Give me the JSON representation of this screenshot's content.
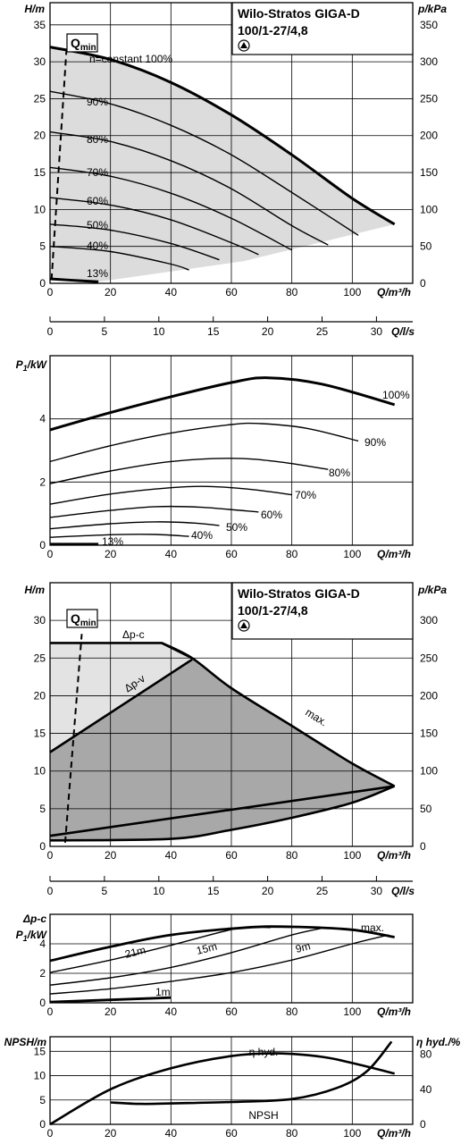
{
  "product": {
    "name": "Wilo-Stratos GIGA-D",
    "model": "100/1-27/4,8"
  },
  "chart_data": [
    {
      "id": "hq_speed",
      "type": "line",
      "title": "Wilo-Stratos GIGA-D 100/1-27/4,8",
      "xlabel": "Q/m³/h",
      "ylabel": "H/m",
      "y2label": "p/kPa",
      "xlim": [
        0,
        120
      ],
      "ylim": [
        0,
        38
      ],
      "y2lim": [
        0,
        380
      ],
      "xticks": [
        0,
        20,
        40,
        60,
        80,
        100
      ],
      "yticks": [
        0,
        5,
        10,
        15,
        20,
        25,
        30,
        35
      ],
      "y2ticks": [
        0,
        50,
        100,
        150,
        200,
        250,
        300,
        350
      ],
      "grid": true,
      "qmin_label": "Q",
      "qmin_sub": "min",
      "qmin_line": [
        [
          0.5,
          0.5
        ],
        [
          5.5,
          32
        ]
      ],
      "shaded_region": true,
      "series": [
        {
          "name": "n=constant 100%",
          "label": "n=constant 100%",
          "thick": true,
          "x": [
            0,
            20,
            40,
            60,
            80,
            100,
            114
          ],
          "y": [
            32,
            30.3,
            27.2,
            22.8,
            17.4,
            11.5,
            8
          ]
        },
        {
          "name": "90%",
          "label": "90%",
          "x": [
            0,
            20,
            40,
            60,
            80,
            102
          ],
          "y": [
            26,
            24.3,
            21.4,
            17.4,
            12.3,
            6.5
          ]
        },
        {
          "name": "80%",
          "label": "80%",
          "x": [
            0,
            20,
            40,
            60,
            80,
            92
          ],
          "y": [
            20.5,
            19.2,
            16.6,
            12.8,
            7.8,
            5.2
          ]
        },
        {
          "name": "70%",
          "label": "70%",
          "x": [
            0,
            20,
            40,
            60,
            80
          ],
          "y": [
            15.7,
            14.5,
            12.2,
            8.8,
            4.5
          ]
        },
        {
          "name": "60%",
          "label": "60%",
          "x": [
            0,
            20,
            40,
            60,
            69
          ],
          "y": [
            11.6,
            10.6,
            8.6,
            5.5,
            3.9
          ]
        },
        {
          "name": "50%",
          "label": "50%",
          "x": [
            0,
            20,
            40,
            56
          ],
          "y": [
            8,
            7.2,
            5.4,
            3.2
          ]
        },
        {
          "name": "40%",
          "label": "40%",
          "x": [
            0,
            20,
            40,
            46
          ],
          "y": [
            5,
            4.3,
            2.6,
            1.8
          ]
        },
        {
          "name": "13%",
          "label": "13%",
          "thick": true,
          "x": [
            0,
            10,
            16
          ],
          "y": [
            0.6,
            0.35,
            0.2
          ]
        }
      ]
    },
    {
      "id": "q_ls_axis",
      "type": "axis",
      "xlabel": "Q/l/s",
      "xticks": [
        0,
        5,
        10,
        15,
        20,
        25,
        30
      ],
      "xlim": [
        0,
        33.333
      ]
    },
    {
      "id": "p1_speed",
      "type": "line",
      "xlabel": "Q/m³/h",
      "ylabel": "P",
      "ylabel_sub": "1",
      "ylabel_unit": "/kW",
      "xlim": [
        0,
        120
      ],
      "ylim": [
        0,
        6
      ],
      "xticks": [
        0,
        20,
        40,
        60,
        80,
        100
      ],
      "yticks": [
        0,
        2,
        4
      ],
      "grid": true,
      "series": [
        {
          "name": "100%",
          "label": "100%",
          "thick": true,
          "x": [
            0,
            20,
            40,
            60,
            72,
            90,
            114
          ],
          "y": [
            3.65,
            4.2,
            4.7,
            5.15,
            5.3,
            5.1,
            4.45
          ]
        },
        {
          "name": "90%",
          "label": "90%",
          "x": [
            0,
            20,
            40,
            60,
            70,
            85,
            102
          ],
          "y": [
            2.65,
            3.15,
            3.55,
            3.82,
            3.85,
            3.7,
            3.3
          ]
        },
        {
          "name": "80%",
          "label": "80%",
          "x": [
            0,
            20,
            40,
            60,
            75,
            92
          ],
          "y": [
            1.95,
            2.35,
            2.65,
            2.75,
            2.65,
            2.4
          ]
        },
        {
          "name": "70%",
          "label": "70%",
          "x": [
            0,
            20,
            40,
            52,
            65,
            80
          ],
          "y": [
            1.3,
            1.62,
            1.82,
            1.86,
            1.78,
            1.6
          ]
        },
        {
          "name": "60%",
          "label": "60%",
          "x": [
            0,
            20,
            35,
            50,
            69
          ],
          "y": [
            0.88,
            1.1,
            1.22,
            1.2,
            1.05
          ]
        },
        {
          "name": "50%",
          "label": "50%",
          "x": [
            0,
            20,
            35,
            48,
            56
          ],
          "y": [
            0.52,
            0.68,
            0.74,
            0.7,
            0.62
          ]
        },
        {
          "name": "40%",
          "label": "40%",
          "x": [
            0,
            20,
            35,
            46
          ],
          "y": [
            0.25,
            0.33,
            0.34,
            0.28
          ]
        },
        {
          "name": "13%",
          "label": "13%",
          "thick": true,
          "x": [
            0,
            16
          ],
          "y": [
            0.03,
            0.03
          ]
        }
      ]
    },
    {
      "id": "hq_control",
      "type": "area",
      "title": "Wilo-Stratos GIGA-D 100/1-27/4,8",
      "xlabel": "Q/m³/h",
      "ylabel": "H/m",
      "y2label": "p/kPa",
      "xlim": [
        0,
        120
      ],
      "ylim": [
        0,
        35
      ],
      "y2lim": [
        0,
        350
      ],
      "xticks": [
        0,
        20,
        40,
        60,
        80,
        100
      ],
      "yticks": [
        0,
        5,
        10,
        15,
        20,
        25,
        30
      ],
      "y2ticks": [
        0,
        50,
        100,
        150,
        200,
        250,
        300
      ],
      "grid": true,
      "qmin_label": "Q",
      "qmin_sub": "min",
      "qmin_line": [
        [
          5,
          0.5
        ],
        [
          10.5,
          28.2
        ]
      ],
      "labels": {
        "dp_c": "Δp-c",
        "dp_v": "Δp-v",
        "max": "max."
      },
      "series": [
        {
          "name": "Δp-c",
          "x": [
            0,
            37,
            47
          ],
          "y": [
            27,
            27,
            25
          ]
        },
        {
          "name": "Δp-v",
          "x": [
            0,
            47
          ],
          "y": [
            12.5,
            24.8
          ]
        },
        {
          "name": "max.",
          "x": [
            37,
            47,
            60,
            80,
            100,
            114
          ],
          "y": [
            27,
            25,
            21,
            16,
            11,
            8
          ]
        },
        {
          "name": "min",
          "x": [
            0,
            40,
            60,
            80,
            100,
            114
          ],
          "y": [
            0.8,
            1.0,
            2.2,
            3.8,
            5.8,
            8
          ]
        }
      ]
    },
    {
      "id": "q_ls_axis_2",
      "type": "axis",
      "xlabel": "Q/l/s",
      "xticks": [
        0,
        5,
        10,
        15,
        20,
        25,
        30
      ],
      "xlim": [
        0,
        33.333
      ]
    },
    {
      "id": "p1_control",
      "type": "line",
      "xlabel": "Q/m³/h",
      "ylabel_top": "Δp-c",
      "ylabel": "P",
      "ylabel_sub": "1",
      "ylabel_unit": "/kW",
      "xlim": [
        0,
        120
      ],
      "ylim": [
        0,
        6
      ],
      "xticks": [
        0,
        20,
        40,
        60,
        80,
        100
      ],
      "yticks": [
        0,
        2,
        4
      ],
      "grid": true,
      "series": [
        {
          "name": "max.",
          "label": "max.",
          "thick": true,
          "x": [
            0,
            20,
            40,
            65,
            80,
            100,
            114
          ],
          "y": [
            2.85,
            3.8,
            4.6,
            5.1,
            5.15,
            4.95,
            4.45
          ]
        },
        {
          "name": "21m",
          "label": "21m",
          "x": [
            0,
            20,
            40,
            62,
            73
          ],
          "y": [
            2.05,
            2.9,
            3.9,
            5.05,
            5.1
          ]
        },
        {
          "name": "15m",
          "label": "15m",
          "x": [
            0,
            20,
            40,
            60,
            80,
            91
          ],
          "y": [
            1.2,
            1.7,
            2.4,
            3.4,
            4.6,
            5.1
          ]
        },
        {
          "name": "9m",
          "label": "9m",
          "x": [
            0,
            20,
            40,
            60,
            80,
            100,
            112
          ],
          "y": [
            0.6,
            0.95,
            1.45,
            2.05,
            2.9,
            4.0,
            4.6
          ]
        },
        {
          "name": "1m",
          "label": "1m",
          "thick": true,
          "x": [
            0,
            40
          ],
          "y": [
            0.05,
            0.35
          ]
        }
      ]
    },
    {
      "id": "npsh_eff",
      "type": "line",
      "xlabel": "Q/m³/h",
      "ylabel": "NPSH/m",
      "y2label": "η hyd./%",
      "xlim": [
        0,
        120
      ],
      "ylim": [
        0,
        18
      ],
      "y2lim": [
        0,
        100
      ],
      "xticks": [
        0,
        20,
        40,
        60,
        80,
        100
      ],
      "yticks": [
        0,
        5,
        10,
        15
      ],
      "y2ticks": [
        0,
        40,
        80
      ],
      "grid": true,
      "series": [
        {
          "name": "η hyd.",
          "label": "η hyd.",
          "axis": "y2",
          "x": [
            0,
            20,
            40,
            60,
            75,
            90,
            100,
            114
          ],
          "y": [
            0,
            40,
            64,
            78,
            81,
            77,
            70,
            58
          ]
        },
        {
          "name": "NPSH",
          "label": "NPSH",
          "axis": "y",
          "x": [
            20,
            30,
            40,
            60,
            80,
            95,
            105,
            113
          ],
          "y": [
            4.5,
            4.2,
            4.3,
            4.6,
            5.2,
            7.5,
            11,
            17
          ]
        }
      ]
    }
  ]
}
